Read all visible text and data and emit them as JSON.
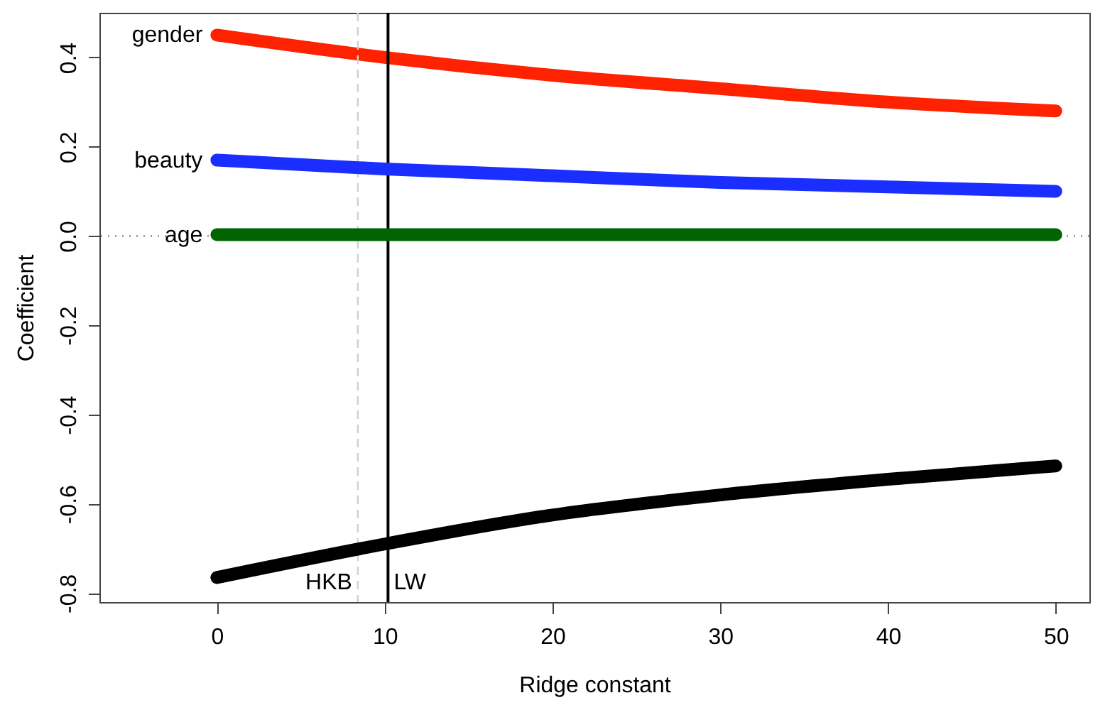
{
  "chart_data": {
    "type": "line",
    "xlabel": "Ridge constant",
    "ylabel": "Coefficient",
    "x": [
      0,
      10,
      20,
      30,
      40,
      50
    ],
    "series": [
      {
        "name": "gender",
        "color": "#ff2200",
        "values": [
          0.45,
          0.4,
          0.36,
          0.33,
          0.3,
          0.28
        ]
      },
      {
        "name": "beauty",
        "color": "#1a2eff",
        "values": [
          0.17,
          0.15,
          0.135,
          0.12,
          0.11,
          0.1
        ]
      },
      {
        "name": "age",
        "color": "#006400",
        "values": [
          0.003,
          0.003,
          0.003,
          0.003,
          0.003,
          0.003
        ]
      },
      {
        "color": "#000000",
        "values": [
          -0.765,
          -0.69,
          -0.625,
          -0.58,
          -0.545,
          -0.515
        ]
      }
    ],
    "xlim": [
      -7,
      52
    ],
    "ylim": [
      -0.82,
      0.5
    ],
    "xticks": [
      0,
      10,
      20,
      30,
      40,
      50
    ],
    "yticks": [
      {
        "value": -0.8,
        "label": "-0.8"
      },
      {
        "value": -0.6,
        "label": "-0.6"
      },
      {
        "value": -0.4,
        "label": "-0.4"
      },
      {
        "value": -0.2,
        "label": "-0.2"
      },
      {
        "value": 0,
        "label": "0.0"
      },
      {
        "value": 0.2,
        "label": "0.2"
      },
      {
        "value": 0.4,
        "label": "0.4"
      }
    ],
    "ref_lines": [
      {
        "axis": "y",
        "value": 0,
        "color": "#808080",
        "line_style": "dotted"
      },
      {
        "axis": "x",
        "value": 8.4,
        "label": "HKB",
        "color": "#d0d0d0",
        "line_style": "dashed"
      },
      {
        "axis": "x",
        "value": 10.2,
        "label": "LW",
        "color": "#000000",
        "line_style": "solid"
      }
    ],
    "grid": false,
    "marker": "none",
    "line_style": "solid"
  }
}
